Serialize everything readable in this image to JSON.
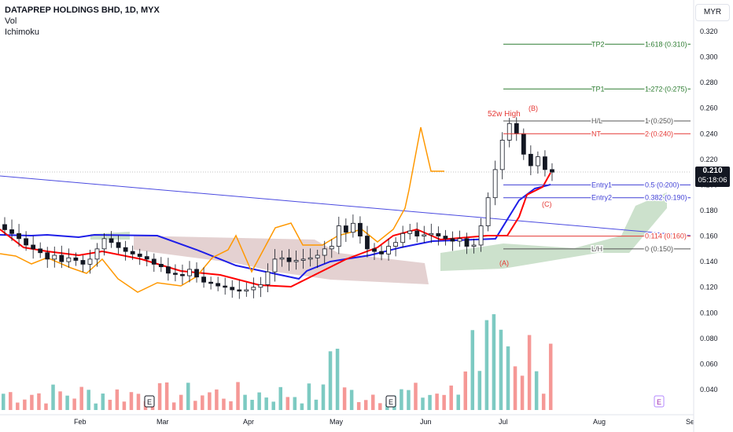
{
  "legend": {
    "title": "DATAPREP HOLDINGS BHD, 1D, MYX",
    "indicators": [
      "Vol",
      "Ichimoku"
    ]
  },
  "price_badge": {
    "price": "0.210",
    "countdown": "05:18:06"
  },
  "currency_button": "MYR",
  "colors": {
    "bull": "#26a69a",
    "bear": "#ef5350",
    "candle_up": "#ffffff",
    "candle_down": "#131722",
    "tenkan": "#ff0000",
    "kijun": "#1e1ee8",
    "chikou": "#ff9800",
    "cloud_bull": "#8fbc8f",
    "cloud_bear": "#c49a9a",
    "trendline": "#4a4ae0",
    "fib_grey": "#555555",
    "fib_red": "#e53935",
    "fib_blue": "#3f3fd6",
    "fib_green": "#2e7d32",
    "grid": "#eeeeee"
  },
  "chart_data": {
    "type": "candlestick",
    "xlabel": "",
    "ylabel": "",
    "price_axis_ticks": [
      "0.320",
      "0.300",
      "0.280",
      "0.260",
      "0.240",
      "0.220",
      "0.200",
      "0.180",
      "0.160",
      "0.140",
      "0.120",
      "0.100",
      "0.080",
      "0.060",
      "0.040"
    ],
    "price_range": [
      0.03,
      0.33
    ],
    "time_axis_labels": [
      "Feb",
      "Mar",
      "Apr",
      "May",
      "Jun",
      "Jul",
      "Aug",
      "Se"
    ],
    "series_close": [
      0.165,
      0.162,
      0.158,
      0.153,
      0.15,
      0.147,
      0.142,
      0.145,
      0.14,
      0.143,
      0.141,
      0.138,
      0.142,
      0.15,
      0.158,
      0.155,
      0.151,
      0.148,
      0.146,
      0.144,
      0.142,
      0.138,
      0.136,
      0.131,
      0.13,
      0.129,
      0.134,
      0.128,
      0.124,
      0.123,
      0.121,
      0.12,
      0.118,
      0.117,
      0.118,
      0.12,
      0.122,
      0.132,
      0.142,
      0.143,
      0.14,
      0.141,
      0.142,
      0.143,
      0.145,
      0.15,
      0.152,
      0.168,
      0.163,
      0.17,
      0.16,
      0.15,
      0.148,
      0.146,
      0.152,
      0.155,
      0.162,
      0.164,
      0.16,
      0.161,
      0.162,
      0.16,
      0.158,
      0.156,
      0.158,
      0.152,
      0.153,
      0.168,
      0.19,
      0.212,
      0.235,
      0.248,
      0.24,
      0.224,
      0.215,
      0.222,
      0.212,
      0.21
    ],
    "volume_label_ticks": [
      "0.100",
      "0.080",
      "0.060",
      "0.040"
    ],
    "events": [
      {
        "label": "E",
        "where": "Mar"
      },
      {
        "label": "E",
        "where": "May"
      },
      {
        "label": "E",
        "where": "Aug"
      }
    ],
    "annotations": {
      "fib_levels": [
        {
          "name": "TP2",
          "ratio": "1.618 (0.310)",
          "price": 0.31
        },
        {
          "name": "TP1",
          "ratio": "1.272 (0.275)",
          "price": 0.275
        },
        {
          "name": "H/L",
          "ratio": "1 (0.250)",
          "price": 0.25
        },
        {
          "name": "NT",
          "ratio": "2 (0.240)",
          "price": 0.24
        },
        {
          "name": "Entry1",
          "ratio": "0.5 (0.200)",
          "price": 0.2
        },
        {
          "name": "Entry2",
          "ratio": "0.382 (0.190)",
          "price": 0.19
        },
        {
          "name": "",
          "ratio": "0.114 (0.160)",
          "price": 0.16
        },
        {
          "name": "L/H",
          "ratio": "0 (0.150)",
          "price": 0.15
        }
      ],
      "wave_labels": [
        "(A)",
        "(B)",
        "(C)"
      ],
      "high_label": "52w High"
    }
  }
}
